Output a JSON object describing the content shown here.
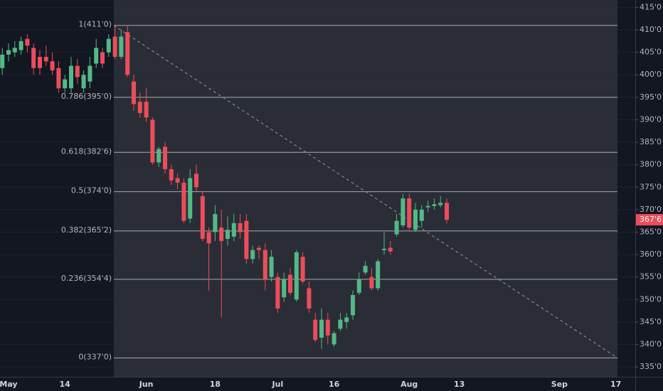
{
  "chart_data": {
    "type": "candlestick",
    "grid": true,
    "up_color": "#53b987",
    "down_color": "#eb4d5c",
    "ylim": [
      332.8,
      416.65
    ],
    "yticks": [
      {
        "value": 335,
        "label": "335'0"
      },
      {
        "value": 340,
        "label": "340'0"
      },
      {
        "value": 345,
        "label": "345'0"
      },
      {
        "value": 350,
        "label": "350'0"
      },
      {
        "value": 355,
        "label": "355'0"
      },
      {
        "value": 360,
        "label": "360'0"
      },
      {
        "value": 365,
        "label": "365'0"
      },
      {
        "value": 370,
        "label": "370'0"
      },
      {
        "value": 375,
        "label": "375'0"
      },
      {
        "value": 380,
        "label": "380'0"
      },
      {
        "value": 385,
        "label": "385'0"
      },
      {
        "value": 390,
        "label": "390'0"
      },
      {
        "value": 395,
        "label": "395'0"
      },
      {
        "value": 400,
        "label": "400'0"
      },
      {
        "value": 405,
        "label": "405'0"
      },
      {
        "value": 410,
        "label": "410'0"
      },
      {
        "value": 415,
        "label": "415'0"
      }
    ],
    "fib_levels": [
      {
        "value": 411,
        "label": "1(411'0)"
      },
      {
        "value": 395,
        "label": "0.786(395'0)"
      },
      {
        "value": 382.75,
        "label": "0.618(382'6)"
      },
      {
        "value": 374,
        "label": "0.5(374'0)"
      },
      {
        "value": 365.25,
        "label": "0.382(365'2)"
      },
      {
        "value": 354.5,
        "label": "0.236(354'4)"
      },
      {
        "value": 337,
        "label": "0(337'0)"
      }
    ],
    "last_price": {
      "value": 367.75,
      "label": "367'6"
    },
    "categories": [
      null,
      "May",
      null,
      null,
      null,
      null,
      null,
      null,
      null,
      null,
      "14",
      null,
      null,
      null,
      null,
      null,
      null,
      null,
      null,
      null,
      null,
      null,
      null,
      "Jun",
      null,
      null,
      null,
      null,
      null,
      null,
      null,
      null,
      null,
      null,
      "18",
      null,
      null,
      null,
      null,
      null,
      null,
      null,
      null,
      null,
      "Jul",
      null,
      null,
      null,
      null,
      null,
      null,
      null,
      null,
      "16",
      null,
      null,
      null,
      null,
      null,
      null,
      null,
      null,
      null,
      null,
      null,
      "Aug",
      null,
      null,
      null,
      null,
      null,
      null,
      null,
      "13",
      null,
      null,
      null,
      null,
      null,
      null,
      null,
      null,
      null,
      null,
      null,
      null,
      null,
      null,
      null,
      "Sep",
      null,
      null,
      null,
      null,
      null,
      null,
      null,
      null,
      "17",
      null,
      null
    ],
    "open": [
      401.5,
      404.5,
      405,
      405.5,
      408,
      406,
      404,
      404,
      403,
      401.5,
      397,
      397,
      402,
      397,
      398.5,
      402.5,
      405,
      405,
      408.5,
      404,
      409.5,
      398.5,
      394,
      394,
      390,
      380.5,
      384,
      379,
      377,
      376,
      368,
      378,
      373,
      365,
      365,
      366,
      363.5,
      364,
      367,
      367.5,
      359,
      361.5,
      361,
      355,
      355,
      350.5,
      355.5,
      350,
      359.5,
      352.5,
      345.5,
      341.5,
      345.5,
      340,
      343.5,
      345,
      346.5,
      351.5,
      356,
      355,
      352.5,
      361,
      361.5,
      364.5,
      366.5,
      372.5,
      365.5,
      367.5,
      370.5,
      370.8,
      371,
      371.5,
      null,
      null,
      null,
      null,
      null,
      null,
      null,
      null,
      null,
      null,
      null,
      null,
      null,
      null,
      null,
      null,
      null,
      null,
      null,
      null,
      null,
      null,
      null,
      null,
      null,
      null,
      null,
      null,
      null
    ],
    "high": [
      406,
      407,
      407.5,
      408.5,
      409,
      407,
      405.5,
      406.5,
      405,
      403,
      400,
      404,
      403.5,
      401,
      404,
      408,
      406,
      409,
      411,
      410,
      411,
      400,
      396,
      397,
      390.5,
      384,
      385,
      380,
      378,
      377,
      379,
      380,
      374,
      366,
      371,
      370,
      368.5,
      369,
      369,
      369,
      362,
      362,
      362.5,
      361,
      356,
      356,
      357,
      361,
      360.5,
      354,
      347,
      348,
      347,
      343,
      347,
      347,
      352,
      356,
      358.5,
      357,
      359,
      365,
      363,
      369,
      373.5,
      373.5,
      371.5,
      371,
      372,
      372.5,
      373,
      372.5,
      null,
      null,
      null,
      null,
      null,
      null,
      null,
      null,
      null,
      null,
      null,
      null,
      null,
      null,
      null,
      null,
      null,
      null,
      null,
      null,
      null,
      null,
      null,
      null,
      null,
      null,
      null,
      null,
      null
    ],
    "low": [
      400,
      403,
      404,
      404.5,
      405,
      400,
      400,
      402,
      400,
      396,
      396,
      396,
      398,
      396,
      397,
      401.5,
      401.5,
      404,
      403.5,
      403.5,
      399.5,
      392,
      390.5,
      389.5,
      380,
      379.5,
      378,
      375.5,
      374.5,
      367,
      367,
      374,
      363,
      352,
      363,
      346,
      362,
      363,
      363.5,
      358,
      358,
      359,
      352,
      354,
      347,
      349.5,
      351,
      349.5,
      353.5,
      347,
      340.5,
      339,
      340,
      339.5,
      343,
      343.5,
      345.5,
      351,
      355.5,
      352,
      352,
      360,
      360,
      364,
      366,
      365.5,
      365,
      366,
      369.5,
      370,
      370.5,
      367,
      null,
      null,
      null,
      null,
      null,
      null,
      null,
      null,
      null,
      null,
      null,
      null,
      null,
      null,
      null,
      null,
      null,
      null,
      null,
      null,
      null,
      null,
      null,
      null,
      null,
      null,
      null,
      null,
      null
    ],
    "close": [
      404.5,
      405.5,
      406,
      407.5,
      406.5,
      401.5,
      401.5,
      403,
      401,
      397,
      399,
      402,
      399.5,
      400,
      402,
      406,
      402.5,
      408,
      404,
      408.5,
      400,
      393.5,
      391.5,
      390.5,
      380.5,
      383.5,
      379,
      376.5,
      376,
      367.5,
      377,
      375,
      363.5,
      362.5,
      369,
      363,
      365.5,
      367,
      365,
      359,
      361,
      361,
      354.5,
      359.5,
      348,
      354.5,
      351.5,
      360.5,
      354,
      348,
      341,
      345.5,
      342,
      342.5,
      345.5,
      346,
      351,
      354.5,
      357.5,
      352.5,
      358.5,
      361.3,
      360.7,
      367.5,
      372.5,
      366,
      370,
      370,
      370.8,
      371.2,
      371.5,
      367.75,
      null,
      null,
      null,
      null,
      null,
      null,
      null,
      null,
      null,
      null,
      null,
      null,
      null,
      null,
      null,
      null,
      null,
      null,
      null,
      null,
      null,
      null,
      null,
      null,
      null,
      null,
      null,
      null,
      null
    ]
  }
}
